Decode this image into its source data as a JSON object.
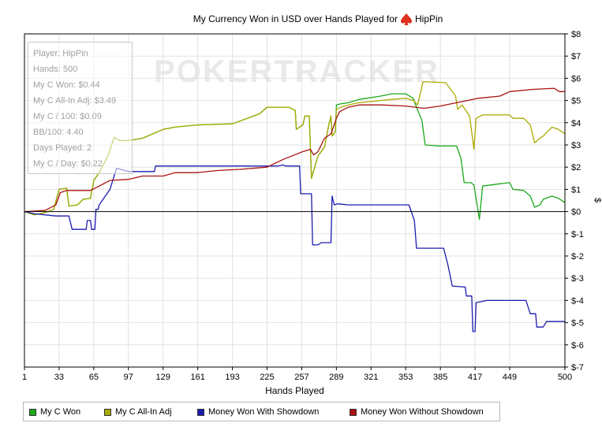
{
  "chart_data": {
    "type": "line",
    "title": "My Currency Won in USD over Hands Played for",
    "player": "HipPin",
    "watermark": "POKERTRACKER",
    "xlabel": "Hands Played",
    "ylabel": "$",
    "xlim": [
      1,
      500
    ],
    "ylim": [
      -7,
      8
    ],
    "x_ticks": [
      1,
      33,
      65,
      97,
      129,
      161,
      193,
      225,
      257,
      289,
      321,
      353,
      385,
      417,
      449,
      500
    ],
    "y_ticks": [
      {
        "value": 8,
        "label": "$8"
      },
      {
        "value": 7,
        "label": "$7"
      },
      {
        "value": 6,
        "label": "$6"
      },
      {
        "value": 5,
        "label": "$5"
      },
      {
        "value": 4,
        "label": "$4"
      },
      {
        "value": 3,
        "label": "$3"
      },
      {
        "value": 2,
        "label": "$2"
      },
      {
        "value": 1,
        "label": "$1"
      },
      {
        "value": 0,
        "label": "$0"
      },
      {
        "value": -1,
        "label": "$-1"
      },
      {
        "value": -2,
        "label": "$-2"
      },
      {
        "value": -3,
        "label": "$-3"
      },
      {
        "value": -4,
        "label": "$-4"
      },
      {
        "value": -5,
        "label": "$-5"
      },
      {
        "value": -6,
        "label": "$-6"
      },
      {
        "value": -7,
        "label": "$-7"
      }
    ],
    "grid": true,
    "legend_position": "bottom",
    "series": [
      {
        "name": "My C Won",
        "color": "#1aa81a",
        "points": [
          [
            1,
            0
          ],
          [
            10,
            -0.15
          ],
          [
            20,
            -0.05
          ],
          [
            28,
            0.1
          ],
          [
            33,
            1
          ],
          [
            40,
            1.05
          ],
          [
            42,
            0.25
          ],
          [
            50,
            0.3
          ],
          [
            55,
            0.55
          ],
          [
            62,
            0.6
          ],
          [
            65,
            1.4
          ],
          [
            70,
            1.75
          ],
          [
            78,
            2.5
          ],
          [
            84,
            3.35
          ],
          [
            88,
            3.2
          ],
          [
            97,
            3.2
          ],
          [
            110,
            3.3
          ],
          [
            129,
            3.7
          ],
          [
            140,
            3.8
          ],
          [
            161,
            3.9
          ],
          [
            193,
            3.95
          ],
          [
            218,
            4.4
          ],
          [
            225,
            4.7
          ],
          [
            245,
            4.7
          ],
          [
            251,
            4.55
          ],
          [
            252,
            3.7
          ],
          [
            258,
            3.9
          ],
          [
            260,
            4.3
          ],
          [
            264,
            4.3
          ],
          [
            266,
            1.5
          ],
          [
            272,
            2.5
          ],
          [
            278,
            2.9
          ],
          [
            282,
            3.9
          ],
          [
            284,
            4.3
          ],
          [
            285,
            3.4
          ],
          [
            288,
            3.6
          ],
          [
            289,
            4.8
          ],
          [
            293,
            4.85
          ],
          [
            300,
            4.9
          ],
          [
            310,
            5.05
          ],
          [
            330,
            5.2
          ],
          [
            340,
            5.3
          ],
          [
            353,
            5.3
          ],
          [
            360,
            5.1
          ],
          [
            363,
            4.7
          ],
          [
            368,
            4.1
          ],
          [
            371,
            3
          ],
          [
            385,
            2.95
          ],
          [
            400,
            2.95
          ],
          [
            404,
            2.4
          ],
          [
            407,
            1.3
          ],
          [
            413,
            1.3
          ],
          [
            416,
            1.2
          ],
          [
            421,
            -0.35
          ],
          [
            424,
            1.15
          ],
          [
            440,
            1.25
          ],
          [
            449,
            1.3
          ],
          [
            452,
            1
          ],
          [
            462,
            0.95
          ],
          [
            468,
            0.7
          ],
          [
            472,
            0.2
          ],
          [
            477,
            0.3
          ],
          [
            480,
            0.55
          ],
          [
            488,
            0.7
          ],
          [
            494,
            0.6
          ],
          [
            500,
            0.4
          ]
        ]
      },
      {
        "name": "My C All-In Adj",
        "color": "#aaaa00",
        "points": [
          [
            1,
            0
          ],
          [
            10,
            -0.15
          ],
          [
            20,
            -0.05
          ],
          [
            28,
            0.1
          ],
          [
            33,
            1
          ],
          [
            40,
            1.05
          ],
          [
            42,
            0.25
          ],
          [
            50,
            0.3
          ],
          [
            55,
            0.55
          ],
          [
            62,
            0.6
          ],
          [
            65,
            1.4
          ],
          [
            70,
            1.75
          ],
          [
            78,
            2.5
          ],
          [
            84,
            3.35
          ],
          [
            88,
            3.2
          ],
          [
            97,
            3.2
          ],
          [
            110,
            3.3
          ],
          [
            129,
            3.7
          ],
          [
            140,
            3.8
          ],
          [
            161,
            3.9
          ],
          [
            193,
            3.95
          ],
          [
            218,
            4.4
          ],
          [
            225,
            4.7
          ],
          [
            245,
            4.7
          ],
          [
            251,
            4.55
          ],
          [
            252,
            3.7
          ],
          [
            258,
            3.9
          ],
          [
            260,
            4.3
          ],
          [
            264,
            4.3
          ],
          [
            266,
            1.5
          ],
          [
            272,
            2.5
          ],
          [
            278,
            2.9
          ],
          [
            282,
            3.9
          ],
          [
            284,
            4.3
          ],
          [
            285,
            3.4
          ],
          [
            288,
            3.6
          ],
          [
            289,
            4.6
          ],
          [
            293,
            4.7
          ],
          [
            300,
            4.8
          ],
          [
            310,
            4.9
          ],
          [
            330,
            5.0
          ],
          [
            340,
            5.05
          ],
          [
            353,
            5.1
          ],
          [
            360,
            5.0
          ],
          [
            364,
            4.8
          ],
          [
            369,
            5.85
          ],
          [
            390,
            5.8
          ],
          [
            399,
            5.2
          ],
          [
            401,
            4.6
          ],
          [
            405,
            4.8
          ],
          [
            412,
            4.3
          ],
          [
            416,
            2.8
          ],
          [
            418,
            4.2
          ],
          [
            424,
            4.35
          ],
          [
            440,
            4.35
          ],
          [
            449,
            4.35
          ],
          [
            452,
            4.2
          ],
          [
            462,
            4.2
          ],
          [
            468,
            3.9
          ],
          [
            472,
            3.1
          ],
          [
            477,
            3.3
          ],
          [
            480,
            3.4
          ],
          [
            488,
            3.8
          ],
          [
            494,
            3.7
          ],
          [
            500,
            3.5
          ]
        ]
      },
      {
        "name": "Money Won With Showdown",
        "color": "#1b1bb0",
        "points": [
          [
            1,
            0
          ],
          [
            10,
            -0.1
          ],
          [
            30,
            -0.2
          ],
          [
            42,
            -0.2
          ],
          [
            45,
            -0.8
          ],
          [
            58,
            -0.8
          ],
          [
            59,
            -0.4
          ],
          [
            62,
            -0.4
          ],
          [
            63,
            -0.8
          ],
          [
            66,
            -0.8
          ],
          [
            67,
            0.1
          ],
          [
            69,
            0.1
          ],
          [
            70,
            0.3
          ],
          [
            80,
            1
          ],
          [
            86,
            1.95
          ],
          [
            97,
            1.8
          ],
          [
            121,
            1.8
          ],
          [
            122,
            2.05
          ],
          [
            150,
            2.05
          ],
          [
            200,
            2.05
          ],
          [
            235,
            2.05
          ],
          [
            240,
            2.1
          ],
          [
            242,
            2.05
          ],
          [
            255,
            2.05
          ],
          [
            256,
            0.8
          ],
          [
            266,
            0.8
          ],
          [
            267,
            -1.5
          ],
          [
            272,
            -1.5
          ],
          [
            275,
            -1.4
          ],
          [
            284,
            -1.4
          ],
          [
            285,
            0.7
          ],
          [
            287,
            0.3
          ],
          [
            290,
            0.35
          ],
          [
            300,
            0.3
          ],
          [
            325,
            0.3
          ],
          [
            353,
            0.3
          ],
          [
            356,
            0.3
          ],
          [
            361,
            -0.4
          ],
          [
            363,
            -1.65
          ],
          [
            388,
            -1.65
          ],
          [
            392,
            -2.4
          ],
          [
            396,
            -3.35
          ],
          [
            408,
            -3.4
          ],
          [
            409,
            -3.8
          ],
          [
            414,
            -3.8
          ],
          [
            415,
            -5.4
          ],
          [
            417,
            -5.4
          ],
          [
            418,
            -4.1
          ],
          [
            428,
            -4
          ],
          [
            464,
            -4
          ],
          [
            468,
            -4.6
          ],
          [
            473,
            -4.6
          ],
          [
            474,
            -5.2
          ],
          [
            480,
            -5.2
          ],
          [
            483,
            -4.95
          ],
          [
            500,
            -4.95
          ]
        ]
      },
      {
        "name": "Money Won Without Showdown",
        "color": "#aa1111",
        "points": [
          [
            1,
            0
          ],
          [
            20,
            0.05
          ],
          [
            30,
            0.3
          ],
          [
            34,
            0.85
          ],
          [
            40,
            0.95
          ],
          [
            50,
            0.95
          ],
          [
            62,
            0.95
          ],
          [
            68,
            1.1
          ],
          [
            80,
            1.4
          ],
          [
            97,
            1.45
          ],
          [
            110,
            1.6
          ],
          [
            129,
            1.6
          ],
          [
            140,
            1.75
          ],
          [
            160,
            1.75
          ],
          [
            180,
            1.85
          ],
          [
            200,
            1.9
          ],
          [
            225,
            2
          ],
          [
            240,
            2.35
          ],
          [
            258,
            2.7
          ],
          [
            265,
            2.8
          ],
          [
            268,
            2.55
          ],
          [
            272,
            2.7
          ],
          [
            278,
            3.3
          ],
          [
            284,
            3.5
          ],
          [
            289,
            4.2
          ],
          [
            292,
            4.5
          ],
          [
            300,
            4.7
          ],
          [
            310,
            4.8
          ],
          [
            330,
            4.8
          ],
          [
            353,
            4.75
          ],
          [
            370,
            4.65
          ],
          [
            385,
            4.75
          ],
          [
            400,
            4.9
          ],
          [
            420,
            5.1
          ],
          [
            440,
            5.2
          ],
          [
            449,
            5.4
          ],
          [
            470,
            5.5
          ],
          [
            490,
            5.55
          ],
          [
            495,
            5.4
          ],
          [
            500,
            5.4
          ]
        ]
      }
    ]
  },
  "stats": {
    "player": "Player: HipPin",
    "hands": "Hands: 500",
    "won": "My C Won: $0.44",
    "allin": "My C All-In Adj: $3.49",
    "per100": "My C / 100: $0.09",
    "bb100": "BB/100: 4.40",
    "days": "Days Played: 2",
    "perday": "My C / Day: $0.22"
  },
  "legend": [
    {
      "label": "My C Won",
      "color": "#1aa81a"
    },
    {
      "label": "My C All-In Adj",
      "color": "#aaaa00"
    },
    {
      "label": "Money Won With Showdown",
      "color": "#1b1bb0"
    },
    {
      "label": "Money Won Without Showdown",
      "color": "#aa1111"
    }
  ]
}
